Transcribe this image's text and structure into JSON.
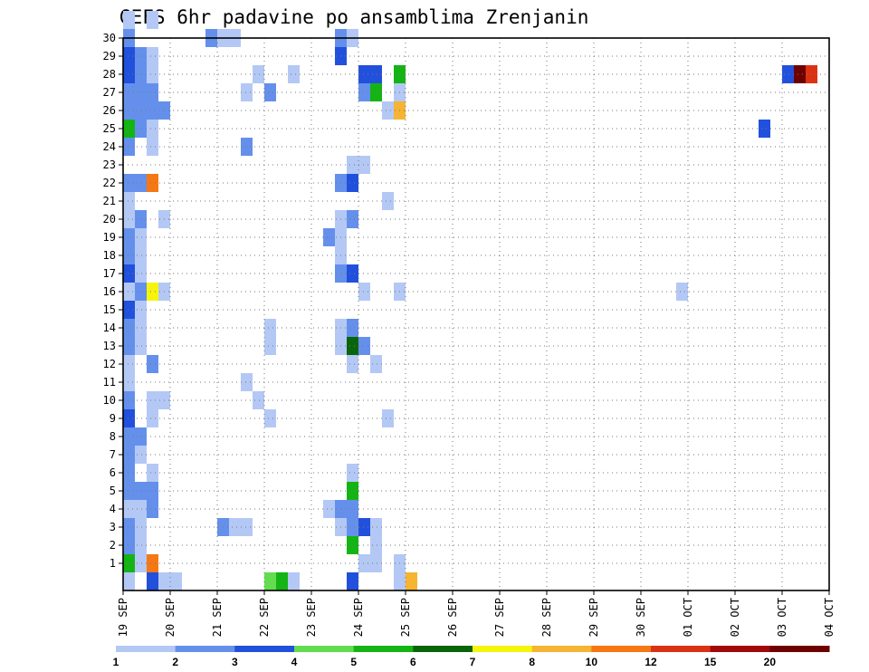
{
  "chart_data": {
    "type": "heatmap",
    "title": "GEFS 6hr padavine po ansamblima Zrenjanin",
    "xlabel": "",
    "ylabel": "",
    "x_ticks": [
      "19 SEP",
      "20 SEP",
      "21 SEP",
      "22 SEP",
      "23 SEP",
      "24 SEP",
      "25 SEP",
      "26 SEP",
      "27 SEP",
      "28 SEP",
      "29 SEP",
      "30 SEP",
      "01 OCT",
      "02 OCT",
      "03 OCT",
      "04 OCT"
    ],
    "y_ticks": [
      "1",
      "2",
      "3",
      "4",
      "5",
      "6",
      "7",
      "8",
      "9",
      "10",
      "11",
      "12",
      "13",
      "14",
      "15",
      "16",
      "17",
      "18",
      "19",
      "20",
      "21",
      "22",
      "23",
      "24",
      "25",
      "26",
      "27",
      "28",
      "29",
      "30"
    ],
    "x_step_hours": 6,
    "grid": true,
    "legend": {
      "placement": "bottom",
      "labels": [
        "1",
        "2",
        "3",
        "4",
        "5",
        "6",
        "7",
        "8",
        "10",
        "12",
        "15",
        "20"
      ],
      "colors": [
        "#b4c8f5",
        "#6490ec",
        "#2150dc",
        "#64dc50",
        "#14b414",
        "#0a640a",
        "#f5f50a",
        "#f5b432",
        "#f57814",
        "#dc3214",
        "#a00a0a",
        "#6e0000"
      ]
    },
    "cells": [
      {
        "member": 0,
        "step": 0,
        "v": 1
      },
      {
        "member": 0,
        "step": 2,
        "v": 3
      },
      {
        "member": 0,
        "step": 3,
        "v": 1
      },
      {
        "member": 0,
        "step": 4,
        "v": 1
      },
      {
        "member": 0,
        "step": 12,
        "v": 4
      },
      {
        "member": 0,
        "step": 13,
        "v": 5
      },
      {
        "member": 0,
        "step": 14,
        "v": 1
      },
      {
        "member": 0,
        "step": 19,
        "v": 3
      },
      {
        "member": 0,
        "step": 23,
        "v": 1
      },
      {
        "member": 0,
        "step": 24,
        "v": 8
      },
      {
        "member": 1,
        "step": 0,
        "v": 5
      },
      {
        "member": 1,
        "step": 1,
        "v": 1
      },
      {
        "member": 1,
        "step": 2,
        "v": 10
      },
      {
        "member": 1,
        "step": 20,
        "v": 1
      },
      {
        "member": 1,
        "step": 21,
        "v": 1
      },
      {
        "member": 1,
        "step": 23,
        "v": 1
      },
      {
        "member": 2,
        "step": 0,
        "v": 2
      },
      {
        "member": 2,
        "step": 1,
        "v": 1
      },
      {
        "member": 2,
        "step": 19,
        "v": 5
      },
      {
        "member": 2,
        "step": 21,
        "v": 1
      },
      {
        "member": 3,
        "step": 0,
        "v": 2
      },
      {
        "member": 3,
        "step": 1,
        "v": 1
      },
      {
        "member": 3,
        "step": 8,
        "v": 2
      },
      {
        "member": 3,
        "step": 9,
        "v": 1
      },
      {
        "member": 3,
        "step": 10,
        "v": 1
      },
      {
        "member": 3,
        "step": 18,
        "v": 1
      },
      {
        "member": 3,
        "step": 19,
        "v": 2
      },
      {
        "member": 3,
        "step": 20,
        "v": 3
      },
      {
        "member": 3,
        "step": 21,
        "v": 1
      },
      {
        "member": 4,
        "step": 0,
        "v": 1
      },
      {
        "member": 4,
        "step": 1,
        "v": 1
      },
      {
        "member": 4,
        "step": 2,
        "v": 2
      },
      {
        "member": 4,
        "step": 17,
        "v": 1
      },
      {
        "member": 4,
        "step": 18,
        "v": 2
      },
      {
        "member": 4,
        "step": 19,
        "v": 2
      },
      {
        "member": 5,
        "step": 0,
        "v": 2
      },
      {
        "member": 5,
        "step": 1,
        "v": 2
      },
      {
        "member": 5,
        "step": 2,
        "v": 2
      },
      {
        "member": 5,
        "step": 19,
        "v": 5
      },
      {
        "member": 6,
        "step": 0,
        "v": 2
      },
      {
        "member": 6,
        "step": 2,
        "v": 1
      },
      {
        "member": 6,
        "step": 19,
        "v": 1
      },
      {
        "member": 7,
        "step": 0,
        "v": 2
      },
      {
        "member": 7,
        "step": 1,
        "v": 1
      },
      {
        "member": 8,
        "step": 0,
        "v": 2
      },
      {
        "member": 8,
        "step": 1,
        "v": 2
      },
      {
        "member": 9,
        "step": 0,
        "v": 3
      },
      {
        "member": 9,
        "step": 2,
        "v": 1
      },
      {
        "member": 9,
        "step": 12,
        "v": 1
      },
      {
        "member": 9,
        "step": 22,
        "v": 1
      },
      {
        "member": 10,
        "step": 0,
        "v": 2
      },
      {
        "member": 10,
        "step": 2,
        "v": 1
      },
      {
        "member": 10,
        "step": 3,
        "v": 1
      },
      {
        "member": 10,
        "step": 11,
        "v": 1
      },
      {
        "member": 11,
        "step": 0,
        "v": 1
      },
      {
        "member": 11,
        "step": 10,
        "v": 1
      },
      {
        "member": 12,
        "step": 0,
        "v": 1
      },
      {
        "member": 12,
        "step": 2,
        "v": 2
      },
      {
        "member": 12,
        "step": 19,
        "v": 1
      },
      {
        "member": 12,
        "step": 21,
        "v": 1
      },
      {
        "member": 13,
        "step": 0,
        "v": 2
      },
      {
        "member": 13,
        "step": 1,
        "v": 1
      },
      {
        "member": 13,
        "step": 12,
        "v": 1
      },
      {
        "member": 13,
        "step": 18,
        "v": 1
      },
      {
        "member": 13,
        "step": 19,
        "v": 6
      },
      {
        "member": 13,
        "step": 20,
        "v": 2
      },
      {
        "member": 14,
        "step": 0,
        "v": 2
      },
      {
        "member": 14,
        "step": 1,
        "v": 1
      },
      {
        "member": 14,
        "step": 12,
        "v": 1
      },
      {
        "member": 14,
        "step": 18,
        "v": 1
      },
      {
        "member": 14,
        "step": 19,
        "v": 2
      },
      {
        "member": 15,
        "step": 0,
        "v": 3
      },
      {
        "member": 15,
        "step": 1,
        "v": 1
      },
      {
        "member": 16,
        "step": 0,
        "v": 1
      },
      {
        "member": 16,
        "step": 1,
        "v": 2
      },
      {
        "member": 16,
        "step": 2,
        "v": 7
      },
      {
        "member": 16,
        "step": 3,
        "v": 1
      },
      {
        "member": 16,
        "step": 20,
        "v": 1
      },
      {
        "member": 16,
        "step": 23,
        "v": 1
      },
      {
        "member": 16,
        "step": 47,
        "v": 1
      },
      {
        "member": 17,
        "step": 0,
        "v": 3
      },
      {
        "member": 17,
        "step": 1,
        "v": 1
      },
      {
        "member": 17,
        "step": 18,
        "v": 2
      },
      {
        "member": 17,
        "step": 19,
        "v": 3
      },
      {
        "member": 18,
        "step": 0,
        "v": 2
      },
      {
        "member": 18,
        "step": 1,
        "v": 1
      },
      {
        "member": 18,
        "step": 18,
        "v": 1
      },
      {
        "member": 19,
        "step": 0,
        "v": 2
      },
      {
        "member": 19,
        "step": 1,
        "v": 1
      },
      {
        "member": 19,
        "step": 17,
        "v": 2
      },
      {
        "member": 19,
        "step": 18,
        "v": 1
      },
      {
        "member": 20,
        "step": 0,
        "v": 1
      },
      {
        "member": 20,
        "step": 1,
        "v": 2
      },
      {
        "member": 20,
        "step": 3,
        "v": 1
      },
      {
        "member": 20,
        "step": 18,
        "v": 1
      },
      {
        "member": 20,
        "step": 19,
        "v": 2
      },
      {
        "member": 21,
        "step": 0,
        "v": 1
      },
      {
        "member": 21,
        "step": 22,
        "v": 1
      },
      {
        "member": 22,
        "step": 0,
        "v": 2
      },
      {
        "member": 22,
        "step": 1,
        "v": 2
      },
      {
        "member": 22,
        "step": 2,
        "v": 10
      },
      {
        "member": 22,
        "step": 18,
        "v": 2
      },
      {
        "member": 22,
        "step": 19,
        "v": 3
      },
      {
        "member": 23,
        "step": 19,
        "v": 1
      },
      {
        "member": 23,
        "step": 20,
        "v": 1
      },
      {
        "member": 24,
        "step": 0,
        "v": 2
      },
      {
        "member": 24,
        "step": 2,
        "v": 1
      },
      {
        "member": 24,
        "step": 10,
        "v": 2
      },
      {
        "member": 25,
        "step": 0,
        "v": 5
      },
      {
        "member": 25,
        "step": 1,
        "v": 2
      },
      {
        "member": 25,
        "step": 2,
        "v": 1
      },
      {
        "member": 25,
        "step": 54,
        "v": 3
      },
      {
        "member": 26,
        "step": 0,
        "v": 2
      },
      {
        "member": 26,
        "step": 1,
        "v": 2
      },
      {
        "member": 26,
        "step": 2,
        "v": 2
      },
      {
        "member": 26,
        "step": 3,
        "v": 2
      },
      {
        "member": 26,
        "step": 22,
        "v": 1
      },
      {
        "member": 26,
        "step": 23,
        "v": 8
      },
      {
        "member": 27,
        "step": 0,
        "v": 2
      },
      {
        "member": 27,
        "step": 1,
        "v": 2
      },
      {
        "member": 27,
        "step": 2,
        "v": 2
      },
      {
        "member": 27,
        "step": 10,
        "v": 1
      },
      {
        "member": 27,
        "step": 12,
        "v": 2
      },
      {
        "member": 27,
        "step": 20,
        "v": 2
      },
      {
        "member": 27,
        "step": 21,
        "v": 5
      },
      {
        "member": 27,
        "step": 23,
        "v": 1
      },
      {
        "member": 28,
        "step": 0,
        "v": 3
      },
      {
        "member": 28,
        "step": 1,
        "v": 2
      },
      {
        "member": 28,
        "step": 2,
        "v": 1
      },
      {
        "member": 28,
        "step": 11,
        "v": 1
      },
      {
        "member": 28,
        "step": 14,
        "v": 1
      },
      {
        "member": 28,
        "step": 20,
        "v": 3
      },
      {
        "member": 28,
        "step": 21,
        "v": 3
      },
      {
        "member": 28,
        "step": 23,
        "v": 5
      },
      {
        "member": 28,
        "step": 56,
        "v": 3
      },
      {
        "member": 28,
        "step": 57,
        "v": 20
      },
      {
        "member": 28,
        "step": 58,
        "v": 12
      },
      {
        "member": 29,
        "step": 0,
        "v": 3
      },
      {
        "member": 29,
        "step": 1,
        "v": 2
      },
      {
        "member": 29,
        "step": 2,
        "v": 1
      },
      {
        "member": 29,
        "step": 18,
        "v": 3
      },
      {
        "member": 30,
        "step": 0,
        "v": 2
      },
      {
        "member": 30,
        "step": 7,
        "v": 2
      },
      {
        "member": 30,
        "step": 8,
        "v": 1
      },
      {
        "member": 30,
        "step": 9,
        "v": 1
      },
      {
        "member": 30,
        "step": 18,
        "v": 2
      },
      {
        "member": 30,
        "step": 19,
        "v": 1
      },
      {
        "member": 31,
        "step": 0,
        "v": 1
      },
      {
        "member": 31,
        "step": 2,
        "v": 1
      }
    ]
  }
}
